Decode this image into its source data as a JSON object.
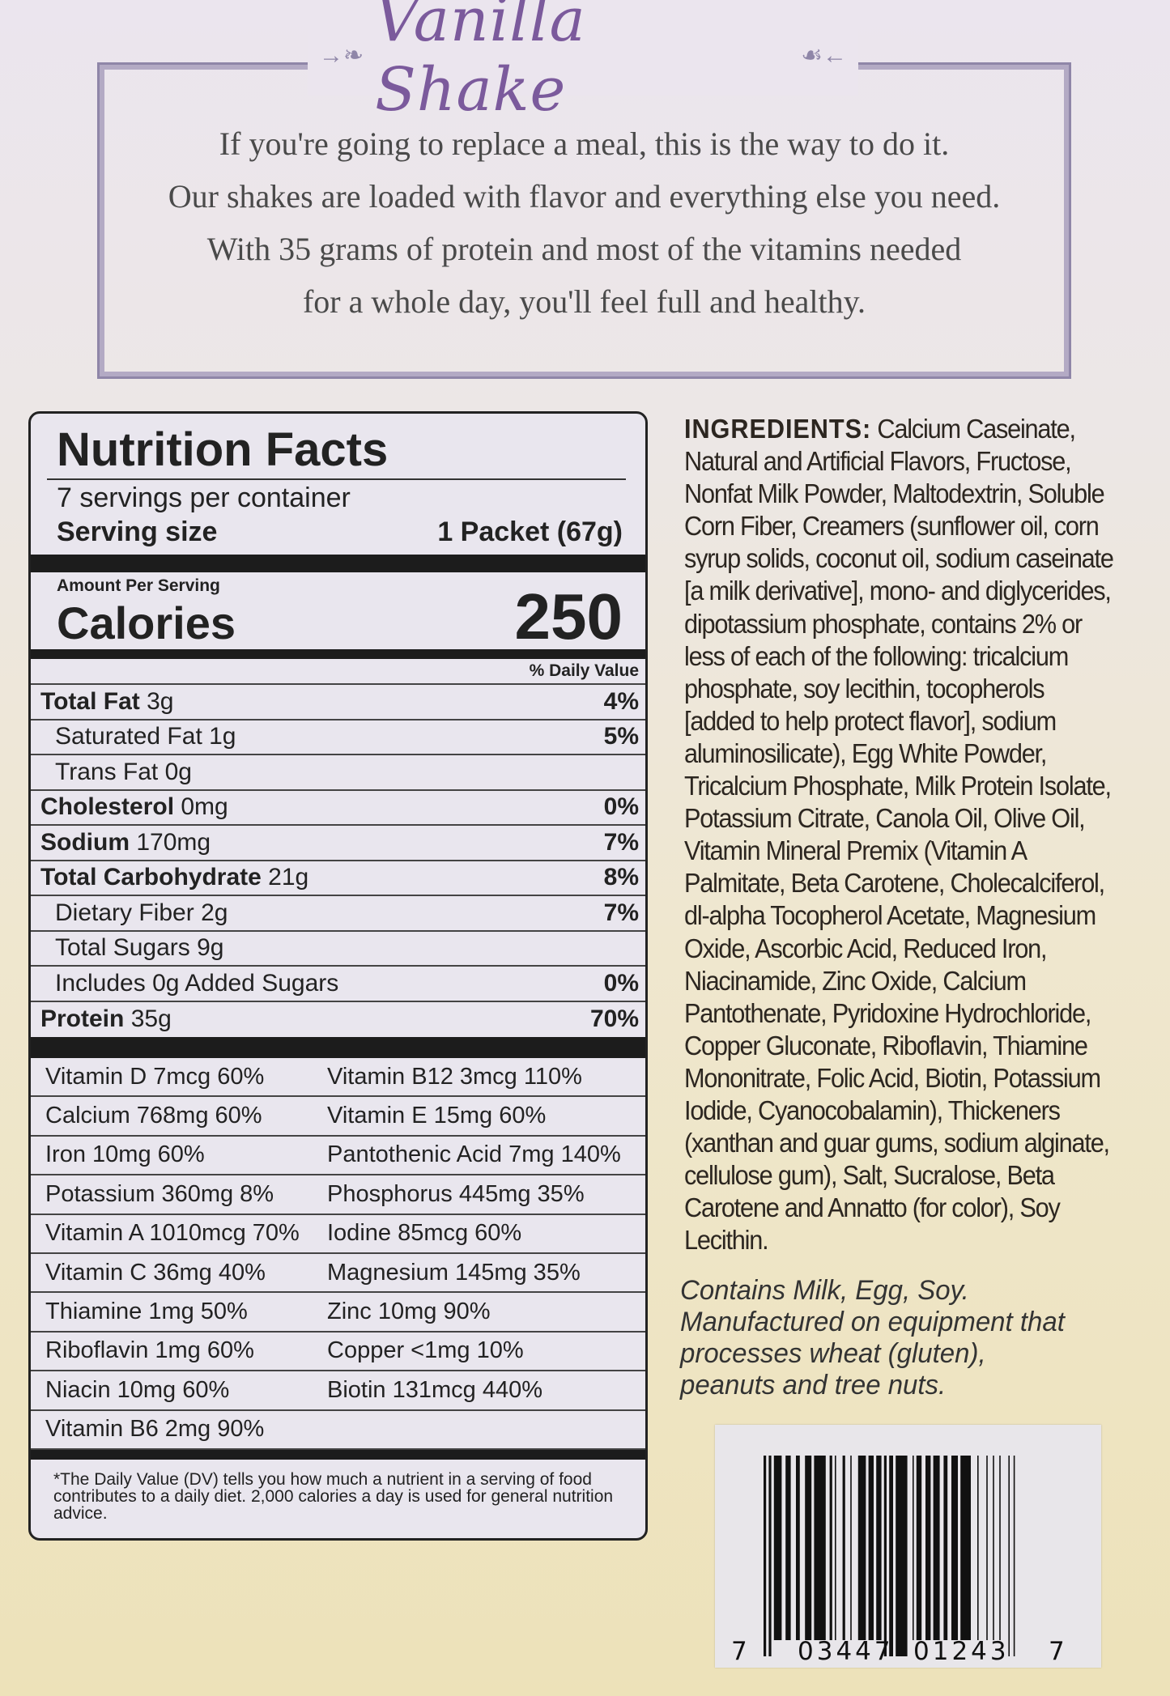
{
  "header": {
    "title": "Vanilla Shake",
    "description": [
      "If you're going to replace a meal, this is the way to do it.",
      "Our shakes are loaded with flavor and everything else you need.",
      "With 35 grams of protein and most of the vitamins needed",
      "for a whole day, you'll feel full and healthy."
    ]
  },
  "nutrition": {
    "title": "Nutrition Facts",
    "servings": "7 servings per container",
    "serving_size_label": "Serving size",
    "serving_size_value": "1 Packet (67g)",
    "amount_per_serving": "Amount Per Serving",
    "calories_label": "Calories",
    "calories_value": "250",
    "daily_value_header": "% Daily Value",
    "rows": [
      {
        "name": "Total Fat",
        "amount": "3g",
        "pct": "4%",
        "bold": true
      },
      {
        "name": "Saturated Fat",
        "amount": "1g",
        "pct": "5%"
      },
      {
        "name": "Trans Fat",
        "amount": "0g",
        "pct": ""
      },
      {
        "name": "Cholesterol",
        "amount": "0mg",
        "pct": "0%",
        "bold": true
      },
      {
        "name": "Sodium",
        "amount": "170mg",
        "pct": "7%",
        "bold": true
      },
      {
        "name": "Total Carbohydrate",
        "amount": "21g",
        "pct": "8%",
        "bold": true
      },
      {
        "name": "Dietary Fiber",
        "amount": "2g",
        "pct": "7%"
      },
      {
        "name": "Total Sugars",
        "amount": "9g",
        "pct": ""
      },
      {
        "name": "Includes 0g Added Sugars",
        "amount": "",
        "pct": "0%"
      },
      {
        "name": "Protein",
        "amount": "35g",
        "pct": "70%",
        "bold": true
      }
    ],
    "vitamins": [
      [
        "Vitamin D 7mcg 60%",
        "Vitamin B12 3mcg 110%"
      ],
      [
        "Calcium 768mg 60%",
        "Vitamin E 15mg 60%"
      ],
      [
        "Iron 10mg 60%",
        "Pantothenic Acid 7mg 140%"
      ],
      [
        "Potassium 360mg 8%",
        "Phosphorus 445mg 35%"
      ],
      [
        "Vitamin A 1010mcg 70%",
        "Iodine 85mcg 60%"
      ],
      [
        "Vitamin C 36mg 40%",
        "Magnesium 145mg 35%"
      ],
      [
        "Thiamine 1mg 50%",
        "Zinc 10mg 90%"
      ],
      [
        "Riboflavin 1mg 60%",
        "Copper <1mg 10%"
      ],
      [
        "Niacin 10mg 60%",
        "Biotin 131mcg 440%"
      ],
      [
        "Vitamin B6 2mg 90%",
        ""
      ]
    ],
    "footnote": "*The Daily Value (DV) tells you how much a nutrient in a serving of food contributes to a daily diet. 2,000 calories a day is used for general nutrition advice."
  },
  "ingredients": {
    "label": "INGREDIENTS:",
    "lines": [
      " Calcium Caseinate,",
      "Natural and Artificial Flavors, Fructose,",
      "Nonfat Milk Powder, Maltodextrin, Soluble",
      "Corn Fiber, Creamers (sunflower oil, corn",
      "syrup solids, coconut oil, sodium caseinate",
      "[a milk derivative], mono- and diglycerides,",
      "dipotassium phosphate, contains 2% or",
      "less of each of the following: tricalcium",
      "phosphate, soy lecithin, tocopherols",
      "[added to help protect flavor], sodium",
      "aluminosilicate), Egg White Powder,",
      "Tricalcium Phosphate, Milk Protein Isolate,",
      "Potassium Citrate, Canola Oil, Olive Oil,",
      "Vitamin Mineral Premix (Vitamin A",
      "Palmitate, Beta Carotene, Cholecalciferol,",
      "dl-alpha Tocopherol Acetate, Magnesium",
      "Oxide, Ascorbic Acid, Reduced Iron,",
      "Niacinamide, Zinc Oxide, Calcium",
      "Pantothenate, Pyridoxine Hydrochloride,",
      "Copper Gluconate, Riboflavin, Thiamine",
      "Mononitrate, Folic Acid, Biotin, Potassium",
      "Iodide, Cyanocobalamin), Thickeners",
      "(xanthan and guar gums, sodium alginate,",
      "cellulose gum), Salt, Sucralose, Beta",
      "Carotene and Annatto (for color), Soy",
      "Lecithin."
    ]
  },
  "allergen": [
    "Contains Milk, Egg, Soy.",
    "Manufactured on equipment that",
    "processes wheat (gluten),",
    "peanuts and tree nuts."
  ],
  "barcode": {
    "left_digit": "7",
    "group1": "03447",
    "group2": "01243",
    "right_digit": "7"
  },
  "colors": {
    "title": "#7b5a9c",
    "frame": "#8f86a8",
    "label_bg": "#e9e6ee"
  }
}
